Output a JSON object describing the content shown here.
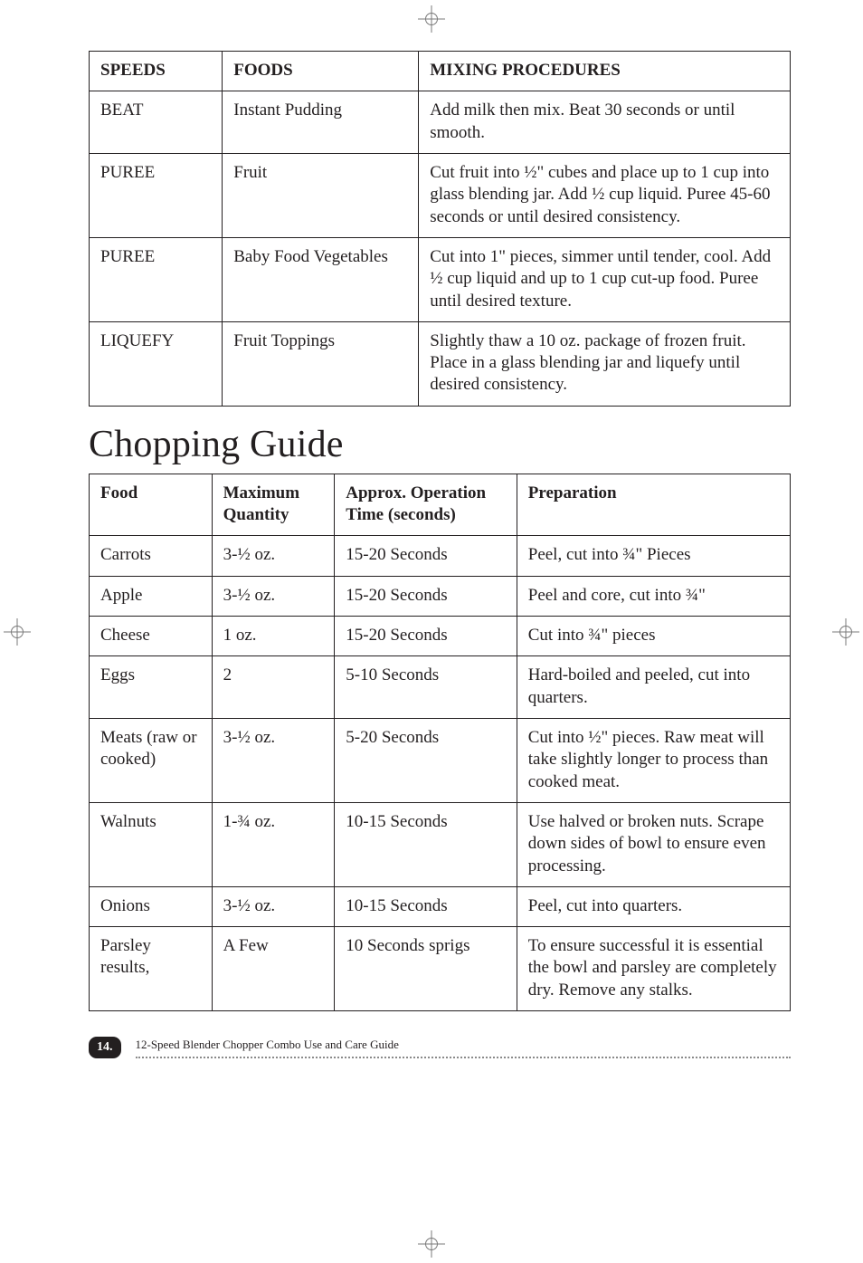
{
  "table1": {
    "headers": [
      "SPEEDS",
      "FOODS",
      "MIXING PROCEDURES"
    ],
    "rows": [
      {
        "speed": "BEAT",
        "food": "Instant Pudding",
        "proc": "Add milk then mix. Beat 30 seconds or until smooth."
      },
      {
        "speed": "PUREE",
        "food": "Fruit",
        "proc": "Cut fruit into ½\" cubes and place up to 1 cup into glass blending jar. Add ½ cup liquid. Puree 45-60 seconds or until desired consistency."
      },
      {
        "speed": "PUREE",
        "food": "Baby Food Vegetables",
        "proc": "Cut into 1\" pieces, simmer until tender, cool. Add ½ cup liquid and up to 1 cup cut-up food. Puree until desired texture."
      },
      {
        "speed": "LIQUEFY",
        "food": "Fruit Toppings",
        "proc": "Slightly thaw a 10 oz. package of frozen fruit. Place in a glass blending jar and liquefy until desired consistency."
      }
    ]
  },
  "heading": "Chopping Guide",
  "table2": {
    "headers": [
      "Food",
      "Maximum Quantity",
      "Approx. Operation Time (seconds)",
      "Preparation"
    ],
    "rows": [
      {
        "food": "Carrots",
        "qty": "3-½ oz.",
        "time": "15-20 Seconds",
        "prep": "Peel, cut into ¾\" Pieces"
      },
      {
        "food": "Apple",
        "qty": "3-½ oz.",
        "time": "15-20 Seconds",
        "prep": "Peel and core, cut into ¾\""
      },
      {
        "food": "Cheese",
        "qty": "1 oz.",
        "time": "15-20 Seconds",
        "prep": "Cut into ¾\" pieces"
      },
      {
        "food": "Eggs",
        "qty": "2",
        "time": "5-10 Seconds",
        "prep": "Hard-boiled and peeled, cut into quarters."
      },
      {
        "food": "Meats (raw or cooked)",
        "qty": "3-½ oz.",
        "time": "5-20 Seconds",
        "prep": "Cut into ½\" pieces. Raw meat will take slightly longer to process than cooked meat."
      },
      {
        "food": "Walnuts",
        "qty": "1-¾ oz.",
        "time": "10-15 Seconds",
        "prep": "Use halved or broken nuts. Scrape down sides of bowl to ensure even processing."
      },
      {
        "food": "Onions",
        "qty": "3-½ oz.",
        "time": "10-15 Seconds",
        "prep": "Peel, cut into quarters."
      },
      {
        "food": "Parsley results,",
        "qty": "A Few",
        "time": "10 Seconds sprigs",
        "prep": "To ensure successful it is essential the bowl and parsley are completely dry. Remove any stalks."
      }
    ]
  },
  "footer": {
    "page": "14.",
    "title": "12-Speed Blender Chopper Combo Use and Care Guide"
  },
  "colors": {
    "text": "#231f20",
    "border": "#231f20",
    "badge_bg": "#231f20",
    "badge_fg": "#ffffff",
    "dotted": "#8a8a8a",
    "reg": "#7a7a7a"
  }
}
